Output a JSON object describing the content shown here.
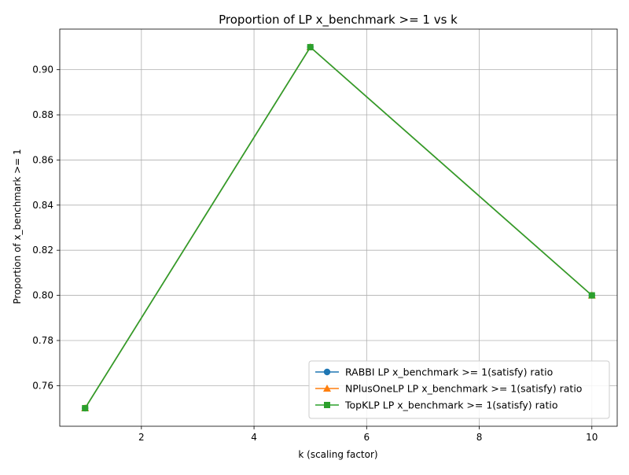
{
  "chart_data": {
    "type": "line",
    "title": "Proportion of LP x_benchmark >= 1 vs k",
    "xlabel": "k (scaling factor)",
    "ylabel": "Proportion of x_benchmark >= 1",
    "x": [
      1,
      5,
      10
    ],
    "xlim": [
      0.55,
      10.45
    ],
    "ylim": [
      0.742,
      0.918
    ],
    "xticks": [
      2,
      4,
      6,
      8,
      10
    ],
    "yticks": [
      0.76,
      0.78,
      0.8,
      0.82,
      0.84,
      0.86,
      0.88,
      0.9
    ],
    "grid": true,
    "legend_position": "lower-right",
    "series": [
      {
        "name": "RABBI LP x_benchmark >= 1(satisfy) ratio",
        "values": [
          0.75,
          0.91,
          0.8
        ],
        "color": "#1f77b4",
        "marker": "circle"
      },
      {
        "name": "NPlusOneLP LP x_benchmark >= 1(satisfy) ratio",
        "values": [
          0.75,
          0.91,
          0.8
        ],
        "color": "#ff7f0e",
        "marker": "triangle"
      },
      {
        "name": "TopKLP LP x_benchmark >= 1(satisfy) ratio",
        "values": [
          0.75,
          0.91,
          0.8
        ],
        "color": "#2ca02c",
        "marker": "square"
      }
    ]
  }
}
